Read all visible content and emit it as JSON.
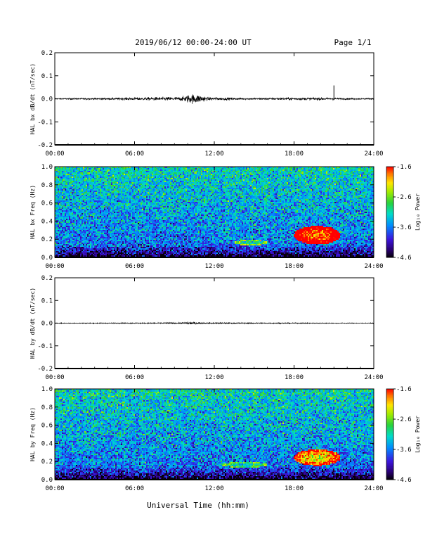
{
  "header": {
    "title": "2019/06/12  00:00-24:00 UT",
    "page": "Page 1/1"
  },
  "xlabel": "Universal Time (hh:mm)",
  "colorbar": {
    "label": "Log₁₀ Power",
    "tick_labels": [
      "-1.6",
      "-2.6",
      "-3.6",
      "-4.6"
    ],
    "range": [
      -4.6,
      -1.6
    ]
  },
  "chart_data": [
    {
      "type": "line",
      "panel": "bx-waveform",
      "ylabel": "HAL bx dB/dt (nT/sec)",
      "ylim": [
        -0.2,
        0.2
      ],
      "yticks": [
        "0.2",
        "0.1",
        "0.0",
        "-0.1",
        "-0.2"
      ],
      "xlim": [
        "00:00",
        "24:00"
      ],
      "xticks": [
        "00:00",
        "06:00",
        "12:00",
        "18:00",
        "24:00"
      ],
      "series": [
        {
          "x": [
            "00:00",
            "03:30",
            "09:30",
            "10:00",
            "10:30",
            "11:00",
            "11:30",
            "14:30",
            "17:30",
            "19:00",
            "21:00",
            "21:05",
            "24:00"
          ],
          "amplitude": [
            0.002,
            0.003,
            0.006,
            0.012,
            0.015,
            0.011,
            0.005,
            0.003,
            0.004,
            0.004,
            0.004,
            0.003,
            0.002
          ],
          "spikes": [
            {
              "x": "21:00",
              "y": 0.058
            }
          ]
        }
      ]
    },
    {
      "type": "heatmap",
      "panel": "bx-spectrogram",
      "ylabel": "HAL bx Freq (Hz)",
      "ylim": [
        0.0,
        1.0
      ],
      "yticks": [
        "1.0",
        "0.8",
        "0.6",
        "0.4",
        "0.2",
        "0.0"
      ],
      "xlim": [
        "00:00",
        "24:00"
      ],
      "xticks": [
        "00:00",
        "06:00",
        "12:00",
        "18:00",
        "24:00"
      ],
      "features": [
        {
          "name": "Pc1 band",
          "x_start": "18:00",
          "x_end": "21:30",
          "freq_center": 0.25,
          "freq_halfwidth": 0.1,
          "log_power": -1.8
        },
        {
          "name": "weak band",
          "x_start": "13:30",
          "x_end": "16:00",
          "freq_center": 0.17,
          "freq_halfwidth": 0.03,
          "log_power": -3.2
        },
        {
          "name": "vertical streak",
          "x": "16:30",
          "log_power": -3.0
        }
      ]
    },
    {
      "type": "line",
      "panel": "by-waveform",
      "ylabel": "HAL by dB/dt (nT/sec)",
      "ylim": [
        -0.2,
        0.2
      ],
      "yticks": [
        "0.2",
        "0.1",
        "0.0",
        "-0.1",
        "-0.2"
      ],
      "xlim": [
        "00:00",
        "24:00"
      ],
      "xticks": [
        "00:00",
        "06:00",
        "12:00",
        "18:00",
        "24:00"
      ],
      "series": [
        {
          "x": [
            "00:00",
            "09:30",
            "10:00",
            "10:30",
            "11:00",
            "12:00",
            "24:00"
          ],
          "amplitude": [
            0.001,
            0.002,
            0.004,
            0.004,
            0.002,
            0.002,
            0.001
          ],
          "spikes": []
        }
      ]
    },
    {
      "type": "heatmap",
      "panel": "by-spectrogram",
      "ylabel": "HAL by Freq (Hz)",
      "ylim": [
        0.0,
        1.0
      ],
      "yticks": [
        "1.0",
        "0.8",
        "0.6",
        "0.4",
        "0.2",
        "0.0"
      ],
      "xlim": [
        "00:00",
        "24:00"
      ],
      "xticks": [
        "00:00",
        "06:00",
        "12:00",
        "18:00",
        "24:00"
      ],
      "features": [
        {
          "name": "Pc1 band",
          "x_start": "18:00",
          "x_end": "21:30",
          "freq_center": 0.25,
          "freq_halfwidth": 0.09,
          "log_power": -2.3
        },
        {
          "name": "weak band",
          "x_start": "12:30",
          "x_end": "16:00",
          "freq_center": 0.17,
          "freq_halfwidth": 0.03,
          "log_power": -3.3
        },
        {
          "name": "vertical streak",
          "x": "16:30",
          "log_power": -3.1
        }
      ]
    }
  ]
}
